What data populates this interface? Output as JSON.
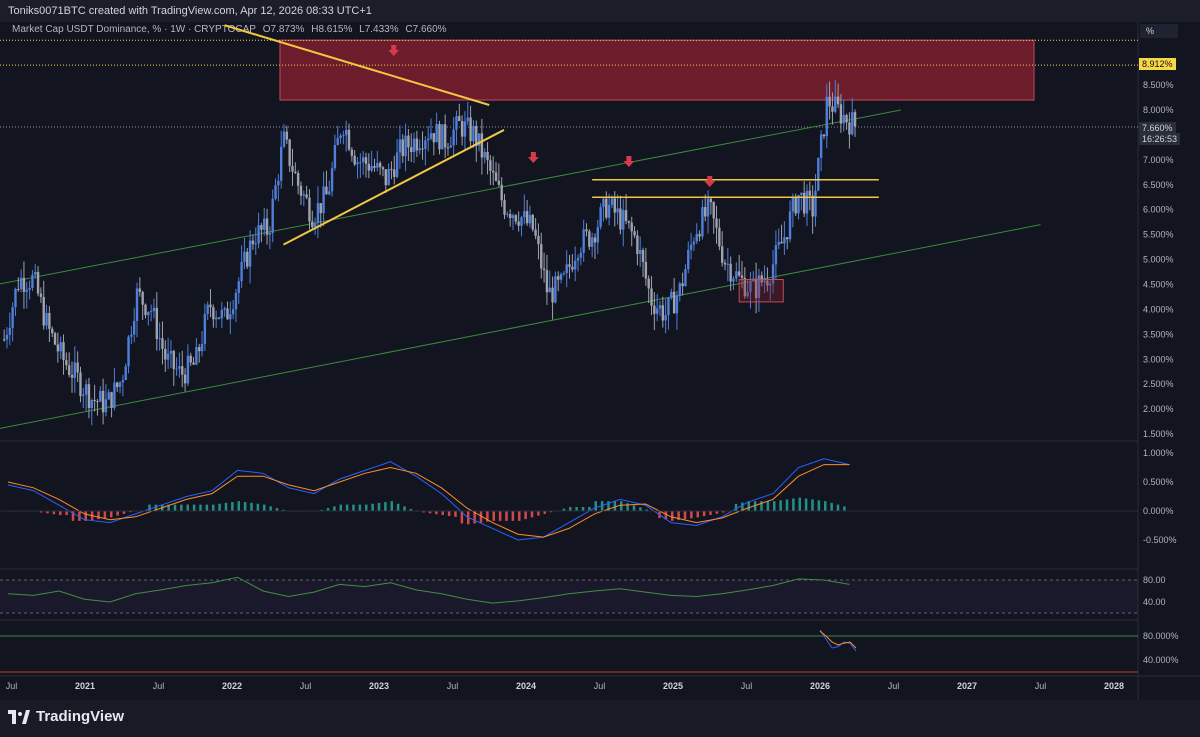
{
  "header": {
    "credit": "Toniks0071BTC created with TradingView.com, Apr 12, 2026 08:33 UTC+1",
    "symbol": "Market Cap USDT Dominance, % · 1W · CRYPTOCAP",
    "open": "O7.873%",
    "high": "H8.615%",
    "low": "L7.433%",
    "close": "C7.660%"
  },
  "scale_unit": "%",
  "price_tags": {
    "resistance": "8.912%",
    "last_price": "7.660%",
    "countdown": "16:26:53"
  },
  "brand": "TradingView",
  "colors": {
    "up": "#4f7fd9",
    "down": "#9ea3ae",
    "zone": "#8b1f2f",
    "trendline": "#f2c744",
    "channel": "#3c8a3c",
    "arrow": "#d83a4b",
    "macd": "#2a62ff",
    "signal": "#ff8c2a",
    "rsi": "#3f8f3f"
  },
  "chart_data": [
    {
      "type": "line",
      "title": "Market Cap USDT Dominance, % · 1W · CRYPTOCAP",
      "xlabel": "",
      "ylabel": "",
      "x_tick_labels": [
        "Jul",
        "2021",
        "Jul",
        "2022",
        "Jul",
        "2023",
        "Jul",
        "2024",
        "Jul",
        "2025",
        "Jul",
        "2026",
        "Jul",
        "2027",
        "Jul",
        "2028"
      ],
      "y_tick_labels": [
        "8.500%",
        "8.000%",
        "7.500%",
        "7.000%",
        "6.500%",
        "6.000%",
        "5.500%",
        "5.000%",
        "4.500%",
        "4.000%",
        "3.500%",
        "3.000%",
        "2.500%",
        "2.000%",
        "1.500%"
      ],
      "ylim": [
        1.4,
        9.2
      ],
      "series": [
        {
          "x": [
            2020.45,
            2020.55,
            2020.65,
            2020.75,
            2020.85,
            2020.95,
            2021.05,
            2021.15,
            2021.25,
            2021.35,
            2021.45,
            2021.55,
            2021.65,
            2021.75,
            2021.85,
            2021.95,
            2022.05,
            2022.15,
            2022.25,
            2022.35,
            2022.45,
            2022.55,
            2022.65,
            2022.75,
            2022.85,
            2022.95,
            2023.05,
            2023.15,
            2023.25,
            2023.35,
            2023.45,
            2023.55,
            2023.65,
            2023.75,
            2023.85,
            2023.95,
            2024.05,
            2024.15,
            2024.25,
            2024.35,
            2024.45,
            2024.55,
            2024.65,
            2024.75,
            2024.85,
            2024.95,
            2025.05,
            2025.15,
            2025.25,
            2025.35,
            2025.45,
            2025.55,
            2025.65,
            2025.75,
            2025.85,
            2025.95,
            2026.05,
            2026.15,
            2026.25
          ],
          "values": [
            3.4,
            4.6,
            4.6,
            3.6,
            3.0,
            2.6,
            2.2,
            2.1,
            2.6,
            4.3,
            4.0,
            3.0,
            2.7,
            2.9,
            4.1,
            3.8,
            4.6,
            5.5,
            5.6,
            7.4,
            6.5,
            5.9,
            6.3,
            7.8,
            7.0,
            6.9,
            6.6,
            7.2,
            7.4,
            7.6,
            7.4,
            7.7,
            7.5,
            6.8,
            6.1,
            5.9,
            5.6,
            4.3,
            4.5,
            5.3,
            5.5,
            6.1,
            5.8,
            5.4,
            4.2,
            3.9,
            4.4,
            5.6,
            6.0,
            5.0,
            4.6,
            4.4,
            4.7,
            5.4,
            6.3,
            6.0,
            8.2,
            7.9,
            7.66
          ]
        }
      ],
      "annotations": {
        "resistance_zone": [
          8.2,
          9.4
        ],
        "horizontal_levels": [
          6.6,
          6.25
        ],
        "falling_trendline": [
          [
            2021.95,
            9.7
          ],
          [
            2023.75,
            8.1
          ]
        ],
        "rising_trendline": [
          [
            2022.35,
            5.3
          ],
          [
            2023.85,
            7.6
          ]
        ],
        "upper_channel": [
          [
            2020.4,
            4.5
          ],
          [
            2026.55,
            8.0
          ]
        ],
        "lower_channel": [
          [
            2020.4,
            1.6
          ],
          [
            2027.5,
            5.7
          ]
        ],
        "sell_arrows_x": [
          2023.1,
          2024.05,
          2024.7,
          2025.25
        ],
        "demand_box": {
          "x": [
            2025.45,
            2025.75
          ],
          "y": [
            4.15,
            4.6
          ]
        }
      }
    },
    {
      "type": "line",
      "title": "",
      "y_tick_labels": [
        "1.000%",
        "0.500%",
        "0.000%",
        "-0.500%"
      ],
      "ylim": [
        -0.75,
        1.1
      ],
      "series": [
        {
          "values": [
            0.45,
            0.35,
            0.1,
            -0.15,
            -0.2,
            -0.05,
            0.1,
            0.25,
            0.35,
            0.7,
            0.65,
            0.4,
            0.3,
            0.55,
            0.7,
            0.85,
            0.6,
            0.3,
            -0.1,
            -0.3,
            -0.5,
            -0.45,
            -0.2,
            0.05,
            0.2,
            0.1,
            -0.2,
            -0.25,
            -0.1,
            0.15,
            0.3,
            0.75,
            0.9,
            0.8
          ]
        },
        {
          "values": [
            0.5,
            0.4,
            0.2,
            -0.05,
            -0.15,
            -0.1,
            0.05,
            0.2,
            0.3,
            0.6,
            0.6,
            0.45,
            0.35,
            0.5,
            0.65,
            0.75,
            0.65,
            0.4,
            0.05,
            -0.2,
            -0.4,
            -0.45,
            -0.3,
            -0.05,
            0.1,
            0.12,
            -0.1,
            -0.2,
            -0.12,
            0.05,
            0.2,
            0.6,
            0.8,
            0.8
          ]
        }
      ]
    },
    {
      "type": "line",
      "title": "",
      "y_tick_labels": [
        "80.00",
        "40.00"
      ],
      "ylim": [
        20,
        90
      ],
      "series": [
        {
          "values": [
            55,
            52,
            60,
            45,
            40,
            55,
            62,
            70,
            75,
            85,
            60,
            50,
            58,
            72,
            68,
            75,
            62,
            55,
            45,
            38,
            42,
            48,
            55,
            60,
            64,
            58,
            52,
            50,
            55,
            62,
            70,
            82,
            80,
            72
          ]
        }
      ]
    },
    {
      "type": "line",
      "title": "",
      "y_tick_labels": [
        "80.000%",
        "40.000%"
      ],
      "ylim": [
        20,
        100
      ],
      "series": [
        {
          "values": [
            90,
            75,
            60,
            62,
            70,
            68,
            55
          ]
        },
        {
          "values": [
            88,
            80,
            70,
            65,
            68,
            70,
            60
          ]
        }
      ]
    }
  ]
}
